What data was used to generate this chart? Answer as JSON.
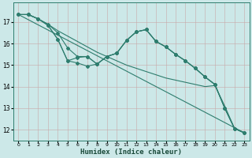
{
  "xlabel": "Humidex (Indice chaleur)",
  "bg_color": "#cce8e8",
  "line_color": "#2e7d6e",
  "xlim": [
    -0.5,
    23.5
  ],
  "ylim": [
    11.5,
    17.9
  ],
  "xticks": [
    0,
    1,
    2,
    3,
    4,
    5,
    6,
    7,
    8,
    9,
    10,
    11,
    12,
    13,
    14,
    15,
    16,
    17,
    18,
    19,
    20,
    21,
    22,
    23
  ],
  "yticks": [
    12,
    13,
    14,
    15,
    16,
    17
  ],
  "line1": {
    "x": [
      0,
      23
    ],
    "y": [
      17.35,
      11.85
    ]
  },
  "line2_x": [
    0,
    1,
    2,
    3,
    4,
    5,
    6,
    7,
    8,
    9,
    10,
    11,
    12,
    13,
    14,
    15,
    16,
    17,
    18,
    19,
    20,
    21,
    22,
    23
  ],
  "line2_y": [
    17.35,
    17.35,
    17.15,
    16.9,
    16.6,
    16.35,
    16.1,
    15.85,
    15.6,
    15.4,
    15.2,
    15.0,
    14.85,
    14.7,
    14.55,
    14.4,
    14.3,
    14.2,
    14.1,
    14.0,
    14.05,
    13.1,
    12.05,
    11.85
  ],
  "line3_x": [
    0,
    1,
    2,
    3,
    4,
    5,
    6,
    7,
    8,
    9,
    10,
    11,
    12,
    13,
    14,
    15,
    16,
    17,
    18,
    19,
    20,
    21,
    22,
    23
  ],
  "line3_y": [
    17.35,
    17.35,
    17.15,
    16.9,
    16.5,
    15.8,
    15.4,
    15.4,
    15.05,
    15.4,
    15.55,
    16.15,
    16.55,
    16.65,
    16.1,
    15.85,
    15.5,
    15.2,
    14.85,
    14.45,
    14.1,
    13.0,
    12.05,
    11.85
  ],
  "line4_x": [
    0,
    1,
    2,
    3,
    4,
    5,
    6,
    7,
    8,
    9,
    10,
    11,
    12,
    13,
    14,
    15,
    16,
    17,
    18,
    19,
    20,
    21,
    22,
    23
  ],
  "line4_y": [
    17.35,
    17.35,
    17.15,
    16.85,
    16.2,
    15.2,
    15.35,
    15.4,
    15.05,
    15.4,
    15.55,
    16.15,
    16.55,
    16.65,
    16.1,
    15.85,
    15.5,
    15.2,
    14.85,
    14.45,
    14.1,
    13.0,
    12.05,
    11.85
  ],
  "line5_x": [
    0,
    1,
    2,
    3,
    4,
    5,
    6,
    7,
    8,
    9,
    10,
    11,
    12,
    13,
    14,
    15,
    16,
    17,
    18,
    19,
    20,
    21,
    22,
    23
  ],
  "line5_y": [
    17.35,
    17.35,
    17.15,
    16.85,
    16.2,
    15.2,
    15.1,
    14.95,
    15.05,
    15.4,
    15.55,
    16.15,
    16.55,
    16.65,
    16.1,
    15.85,
    15.5,
    15.2,
    14.85,
    14.45,
    14.1,
    13.0,
    12.05,
    11.85
  ]
}
